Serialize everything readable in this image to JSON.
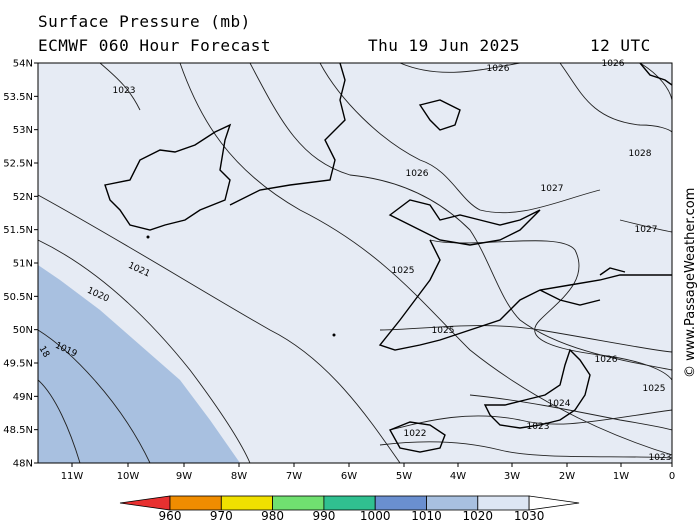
{
  "title": {
    "line1": "Surface Pressure (mb)",
    "model": "ECMWF 060 Hour Forecast",
    "date": "Thu 19 Jun 2025",
    "time": "12 UTC"
  },
  "credit": "© www.PassageWeather.com",
  "lat_labels": [
    "54N",
    "53.5N",
    "53N",
    "52.5N",
    "52N",
    "51.5N",
    "51N",
    "50.5N",
    "50N",
    "49.5N",
    "49N",
    "48.5N",
    "48N"
  ],
  "lon_labels": [
    "11W",
    "10W",
    "9W",
    "8W",
    "7W",
    "6W",
    "5W",
    "4W",
    "3W",
    "2W",
    "1W",
    "0"
  ],
  "isobar_labels": [
    "1023",
    "1026",
    "1026",
    "1028",
    "1026",
    "1027",
    "1027",
    "1025",
    "1025",
    "1026",
    "1025",
    "1024",
    "1023",
    "1022",
    "1023",
    "1021",
    "1020",
    "1019",
    "18"
  ],
  "scale": {
    "values": [
      "960",
      "970",
      "980",
      "990",
      "1000",
      "1010",
      "1020",
      "1030"
    ],
    "colors": [
      "#e83030",
      "#f08c00",
      "#f0e000",
      "#70e070",
      "#30c090",
      "#6a8fd0",
      "#a8c0e0",
      "#dde6f4",
      "#ffffff"
    ]
  },
  "colors": {
    "land": "#e6ebf4",
    "sea_high": "#e6ebf4",
    "sea_low": "#a8c0e0"
  }
}
